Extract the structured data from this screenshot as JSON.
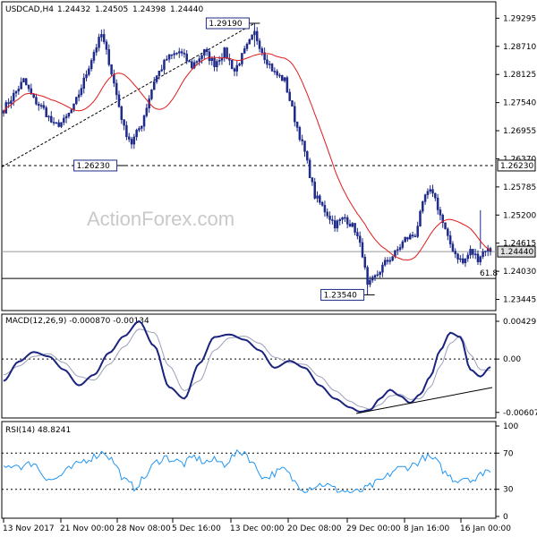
{
  "chart_data": [
    {
      "type": "candlestick",
      "title": "USDCAD,H4",
      "ohlc_header": [
        "1.24432",
        "1.24505",
        "1.24398",
        "1.24440"
      ],
      "watermark": "ActionForex.com",
      "ylim": [
        1.2325,
        1.296
      ],
      "y_ticks": [
        "1.29295",
        "1.28710",
        "1.28125",
        "1.27540",
        "1.26955",
        "1.26370",
        "1.25785",
        "1.25200",
        "1.24615",
        "1.24030",
        "1.23445"
      ],
      "x_ticks": [
        "13 Nov 2017",
        "21 Nov 00:00",
        "28 Nov 08:00",
        "5 Dec 16:00",
        "13 Dec 00:00",
        "20 Dec 08:00",
        "29 Dec 00:00",
        "8 Jan 16:00",
        "16 Jan 00:00"
      ],
      "annotations": [
        {
          "text": "1.29190",
          "price": 1.2919
        },
        {
          "text": "1.26230",
          "price": 1.2623
        },
        {
          "text": "1.23540",
          "price": 1.2354
        }
      ],
      "price_tags": [
        {
          "text": "1.26230",
          "price": 1.2623
        },
        {
          "text": "1.24440",
          "price": 1.2444
        }
      ],
      "fib_label": "61.8",
      "fib_price": 1.2388,
      "series_colors": {
        "candles": "#1e2a8a",
        "ma": "#e01b1b",
        "trendline": "#000000"
      },
      "close_anchors": [
        [
          0,
          1.274
        ],
        [
          4,
          1.277
        ],
        [
          8,
          1.28
        ],
        [
          12,
          1.276
        ],
        [
          16,
          1.274
        ],
        [
          20,
          1.2705
        ],
        [
          24,
          1.2715
        ],
        [
          28,
          1.2745
        ],
        [
          32,
          1.28
        ],
        [
          36,
          1.286
        ],
        [
          39,
          1.2895
        ],
        [
          42,
          1.284
        ],
        [
          45,
          1.277
        ],
        [
          48,
          1.27
        ],
        [
          51,
          1.267
        ],
        [
          55,
          1.271
        ],
        [
          60,
          1.28
        ],
        [
          65,
          1.2845
        ],
        [
          70,
          1.286
        ],
        [
          75,
          1.283
        ],
        [
          80,
          1.286
        ],
        [
          84,
          1.2835
        ],
        [
          88,
          1.286
        ],
        [
          92,
          1.282
        ],
        [
          96,
          1.286
        ],
        [
          100,
          1.2898
        ],
        [
          104,
          1.285
        ],
        [
          108,
          1.2815
        ],
        [
          112,
          1.28
        ],
        [
          116,
          1.272
        ],
        [
          120,
          1.265
        ],
        [
          124,
          1.256
        ],
        [
          128,
          1.253
        ],
        [
          132,
          1.25
        ],
        [
          136,
          1.2515
        ],
        [
          140,
          1.249
        ],
        [
          143,
          1.244
        ],
        [
          145,
          1.237
        ],
        [
          148,
          1.239
        ],
        [
          152,
          1.242
        ],
        [
          156,
          1.244
        ],
        [
          160,
          1.247
        ],
        [
          164,
          1.248
        ],
        [
          168,
          1.256
        ],
        [
          171,
          1.257
        ],
        [
          174,
          1.252
        ],
        [
          177,
          1.247
        ],
        [
          180,
          1.244
        ],
        [
          183,
          1.242
        ],
        [
          186,
          1.2445
        ],
        [
          189,
          1.243
        ],
        [
          192,
          1.245
        ],
        [
          194,
          1.2444
        ]
      ]
    },
    {
      "type": "line",
      "title": "MACD(12,26,9) -0.000870 -0.00134",
      "ylim": [
        -0.0065,
        0.0046
      ],
      "y_ticks": [
        "0.004297",
        "0.00",
        "-0.006071"
      ],
      "series": [
        {
          "name": "MACD",
          "color": "#1a237e",
          "x": [
            0,
            6,
            12,
            18,
            24,
            30,
            36,
            42,
            48,
            54,
            60,
            66,
            72,
            78,
            84,
            90,
            96,
            102,
            108,
            114,
            120,
            126,
            132,
            138,
            142,
            146,
            150,
            154,
            158,
            162,
            166,
            170,
            174,
            178,
            182,
            186,
            190,
            194
          ],
          "values": [
            -0.0025,
            -0.0003,
            0.0008,
            0.0003,
            -0.0012,
            -0.003,
            -0.0018,
            0.0007,
            0.0026,
            0.0043,
            0.0015,
            -0.0032,
            -0.0045,
            -0.0005,
            0.0025,
            0.0028,
            0.0022,
            0.001,
            -0.001,
            -0.0002,
            -0.001,
            -0.003,
            -0.0045,
            -0.0055,
            -0.006,
            -0.0058,
            -0.0045,
            -0.0035,
            -0.0042,
            -0.005,
            -0.004,
            -0.002,
            0.001,
            0.003,
            0.0025,
            -0.0012,
            -0.002,
            -0.0009
          ]
        },
        {
          "name": "Signal",
          "color": "#9aa0b8",
          "x": [
            0,
            6,
            12,
            18,
            24,
            30,
            36,
            42,
            48,
            54,
            60,
            66,
            72,
            78,
            84,
            90,
            96,
            102,
            108,
            114,
            120,
            126,
            132,
            138,
            142,
            146,
            150,
            154,
            158,
            162,
            166,
            170,
            174,
            178,
            182,
            186,
            190,
            194
          ],
          "values": [
            -0.0018,
            -0.0008,
            0.0003,
            0.0006,
            -0.0004,
            -0.002,
            -0.0024,
            -0.0006,
            0.0014,
            0.0034,
            0.003,
            -0.0008,
            -0.0036,
            -0.0025,
            0.001,
            0.0024,
            0.0026,
            0.0018,
            0.0002,
            -0.0004,
            -0.0006,
            -0.002,
            -0.0036,
            -0.0048,
            -0.0054,
            -0.0057,
            -0.0052,
            -0.0042,
            -0.004,
            -0.0046,
            -0.0045,
            -0.0032,
            -0.0008,
            0.0018,
            0.0026,
            0.0005,
            -0.0012,
            -0.0013
          ]
        }
      ]
    },
    {
      "type": "line",
      "title": "RSI(14) 48.8241",
      "ylim": [
        0,
        100
      ],
      "y_ticks": [
        "100",
        "70",
        "30",
        "0"
      ],
      "levels": [
        70,
        30
      ],
      "series": [
        {
          "name": "RSI",
          "color": "#2196f3",
          "x": [
            0,
            4,
            8,
            12,
            16,
            20,
            24,
            28,
            32,
            36,
            40,
            44,
            48,
            52,
            56,
            60,
            64,
            68,
            72,
            76,
            80,
            84,
            88,
            92,
            96,
            100,
            104,
            108,
            112,
            116,
            120,
            124,
            128,
            132,
            136,
            140,
            144,
            148,
            152,
            156,
            160,
            164,
            168,
            172,
            176,
            180,
            184,
            188,
            192,
            194
          ],
          "values": [
            52,
            58,
            55,
            60,
            45,
            40,
            48,
            55,
            62,
            66,
            72,
            60,
            40,
            32,
            42,
            58,
            66,
            62,
            58,
            66,
            60,
            62,
            58,
            68,
            72,
            56,
            42,
            48,
            52,
            38,
            30,
            34,
            36,
            30,
            28,
            26,
            30,
            36,
            42,
            52,
            54,
            58,
            66,
            62,
            48,
            40,
            44,
            40,
            52,
            48.8
          ]
        }
      ]
    }
  ]
}
